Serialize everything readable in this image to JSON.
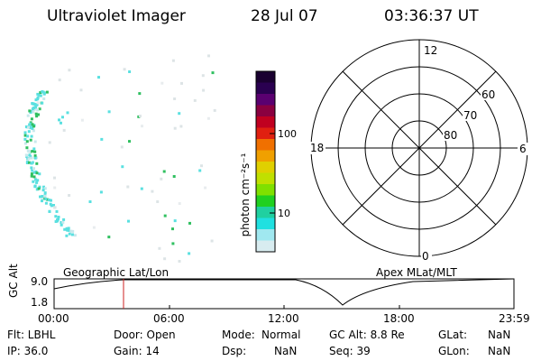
{
  "header": {
    "instrument": "Ultraviolet Imager",
    "date": "28 Jul 07",
    "time": "03:36:37 UT"
  },
  "colorbar": {
    "label": "photon cm⁻²s⁻¹",
    "ticks": [
      "100",
      "10"
    ],
    "colors": [
      "#1a0030",
      "#2a0050",
      "#5a0070",
      "#8a0040",
      "#c00020",
      "#e02010",
      "#f07000",
      "#f0a000",
      "#e0d000",
      "#c0e000",
      "#80e000",
      "#20d020",
      "#20d0a0",
      "#20e0e0",
      "#a0e8f0",
      "#d8ecf0"
    ]
  },
  "polar": {
    "mlt_labels": [
      "12",
      "6",
      "0",
      "18"
    ],
    "lat_labels": [
      "60",
      "70",
      "80"
    ]
  },
  "timeline": {
    "ylabel": "GC Alt",
    "y_ticks": [
      "9.0",
      "1.8"
    ],
    "left_label": "Geographic Lat/Lon",
    "right_label": "Apex MLat/MLT",
    "x_ticks": [
      "00:00",
      "06:00",
      "12:00",
      "18:00",
      "23:59"
    ]
  },
  "info": {
    "flt": "Flt: LBHL",
    "ip": "IP: 36.0",
    "door": "Door: Open",
    "gain": "Gain: 14",
    "mode_label": "Mode:",
    "mode_value": "Normal",
    "dsp_label": "Dsp:",
    "dsp_value": "NaN",
    "gcalt": "GC Alt: 8.8 Re",
    "seq": "Seq: 39",
    "glat_label": "GLat:",
    "glat_value": "NaN",
    "glon_label": "GLon:",
    "glon_value": "NaN"
  },
  "colors": {
    "marker": "#cc2222",
    "dot_cyan": "#5ae0e0",
    "dot_green": "#30c060"
  }
}
